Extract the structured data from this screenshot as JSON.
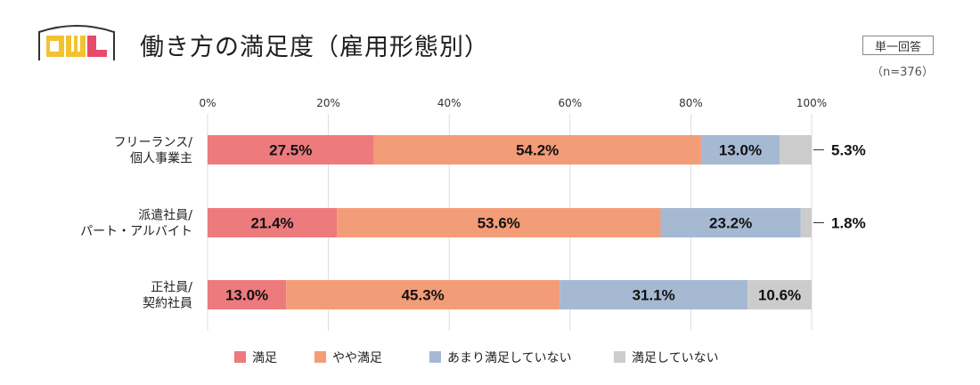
{
  "header": {
    "title": "働き方の満足度（雇用形態別）",
    "badge": "単一回答",
    "sample": "（n=376）",
    "logo_text": "CWL"
  },
  "colors": {
    "satisfied": "#ed7a7d",
    "somewhat": "#f39c78",
    "not_very": "#a5b9d3",
    "not": "#cccccc",
    "grid": "#dddddd"
  },
  "chart_data": {
    "type": "bar",
    "orientation": "horizontal-stacked-100",
    "title": "働き方の満足度（雇用形態別）",
    "xlim": [
      0,
      100
    ],
    "ticks": [
      "0%",
      "20%",
      "40%",
      "60%",
      "80%",
      "100%"
    ],
    "tick_values": [
      0,
      20,
      40,
      60,
      80,
      100
    ],
    "categories": [
      [
        "フリーランス/",
        "個人事業主"
      ],
      [
        "派遣社員/",
        "パート・アルバイト"
      ],
      [
        "正社員/",
        "契約社員"
      ]
    ],
    "series": [
      {
        "name": "満足",
        "color_key": "satisfied",
        "values": [
          27.5,
          21.4,
          13.0
        ],
        "labels": [
          "27.5%",
          "21.4%",
          "13.0%"
        ]
      },
      {
        "name": "やや満足",
        "color_key": "somewhat",
        "values": [
          54.2,
          53.6,
          45.3
        ],
        "labels": [
          "54.2%",
          "53.6%",
          "45.3%"
        ]
      },
      {
        "name": "あまり満足していない",
        "color_key": "not_very",
        "values": [
          13.0,
          23.2,
          31.1
        ],
        "labels": [
          "13.0%",
          "23.2%",
          "31.1%"
        ]
      },
      {
        "name": "満足していない",
        "color_key": "not",
        "values": [
          5.3,
          1.8,
          10.6
        ],
        "labels": [
          "5.3%",
          "1.8%",
          "10.6%"
        ]
      }
    ],
    "legend": "bottom"
  }
}
